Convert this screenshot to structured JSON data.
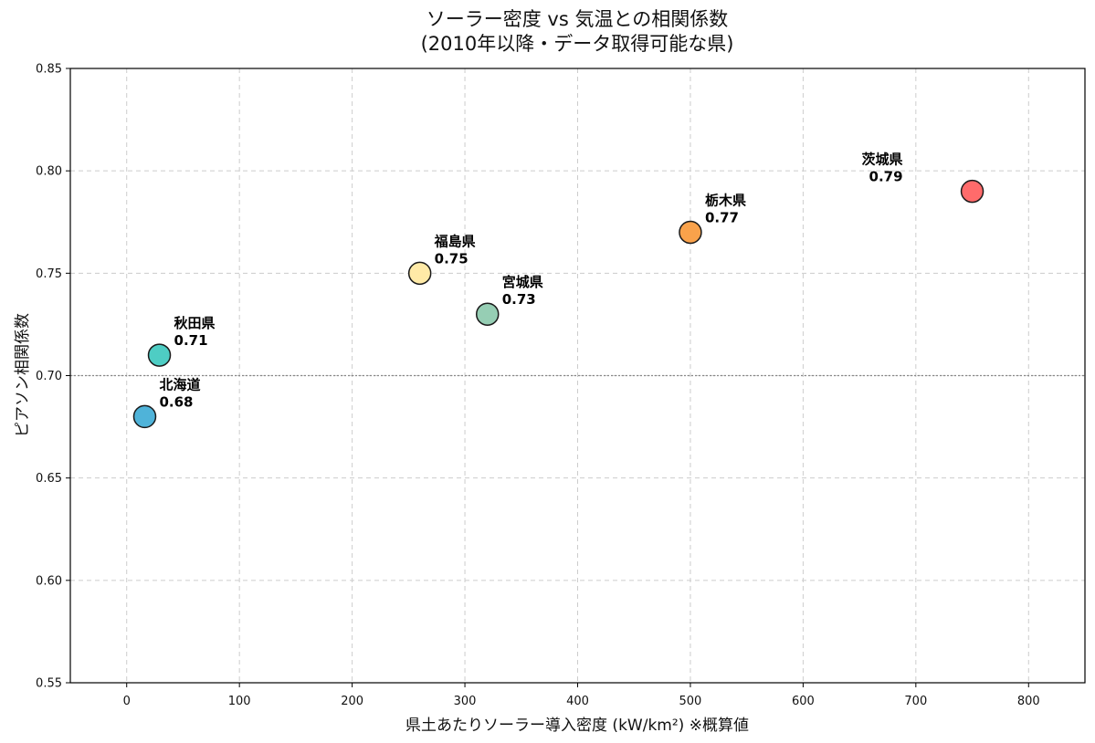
{
  "chart_data": {
    "type": "scatter",
    "title_line1": "ソーラー密度 vs 気温との相関係数",
    "title_line2": "(2010年以降・データ取得可能な県)",
    "xlabel": "県土あたりソーラー導入密度 (kW/km²) ※概算値",
    "ylabel": "ピアソン相関係数",
    "xlim": [
      -50,
      850
    ],
    "ylim": [
      0.55,
      0.85
    ],
    "x_ticks": [
      0,
      100,
      200,
      300,
      400,
      500,
      600,
      700,
      800
    ],
    "x_tick_labels": [
      "0",
      "100",
      "200",
      "300",
      "400",
      "500",
      "600",
      "700",
      "800"
    ],
    "y_ticks": [
      0.55,
      0.6,
      0.65,
      0.7,
      0.75,
      0.8,
      0.85
    ],
    "y_tick_labels": [
      "0.55",
      "0.60",
      "0.65",
      "0.70",
      "0.75",
      "0.80",
      "0.85"
    ],
    "grid": true,
    "reference_line_y": 0.7,
    "points": [
      {
        "name": "北海道",
        "x": 16,
        "y": 0.68,
        "value_label": "0.68",
        "color": "#4fb3d9",
        "label_side": "right"
      },
      {
        "name": "秋田県",
        "x": 29,
        "y": 0.71,
        "value_label": "0.71",
        "color": "#4ecdc4",
        "label_side": "right"
      },
      {
        "name": "福島県",
        "x": 260,
        "y": 0.75,
        "value_label": "0.75",
        "color": "#ffeaa7",
        "label_side": "right"
      },
      {
        "name": "宮城県",
        "x": 320,
        "y": 0.73,
        "value_label": "0.73",
        "color": "#96ceb4",
        "label_side": "right"
      },
      {
        "name": "栃木県",
        "x": 500,
        "y": 0.77,
        "value_label": "0.77",
        "color": "#f9a24b",
        "label_side": "right"
      },
      {
        "name": "茨城県",
        "x": 750,
        "y": 0.79,
        "value_label": "0.79",
        "color": "#ff6b6b",
        "label_side": "left"
      }
    ]
  }
}
